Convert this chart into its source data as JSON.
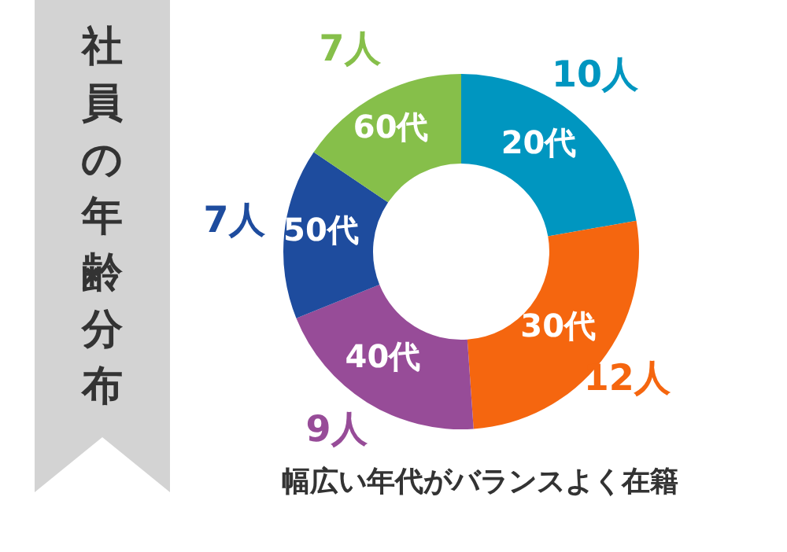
{
  "chart_data": {
    "type": "donut",
    "title": "社員の年齢分布",
    "annotations": [
      "幅広い年代がバランスよく在籍"
    ],
    "categories": [
      "20代",
      "30代",
      "40代",
      "50代",
      "60代"
    ],
    "values": [
      10,
      12,
      9,
      7,
      7
    ],
    "value_labels": [
      "10人",
      "12人",
      "9人",
      "7人",
      "7人"
    ],
    "colors": [
      "#0096c0",
      "#f5660f",
      "#974c98",
      "#1e4c9e",
      "#86bf4a"
    ],
    "legend": false
  }
}
